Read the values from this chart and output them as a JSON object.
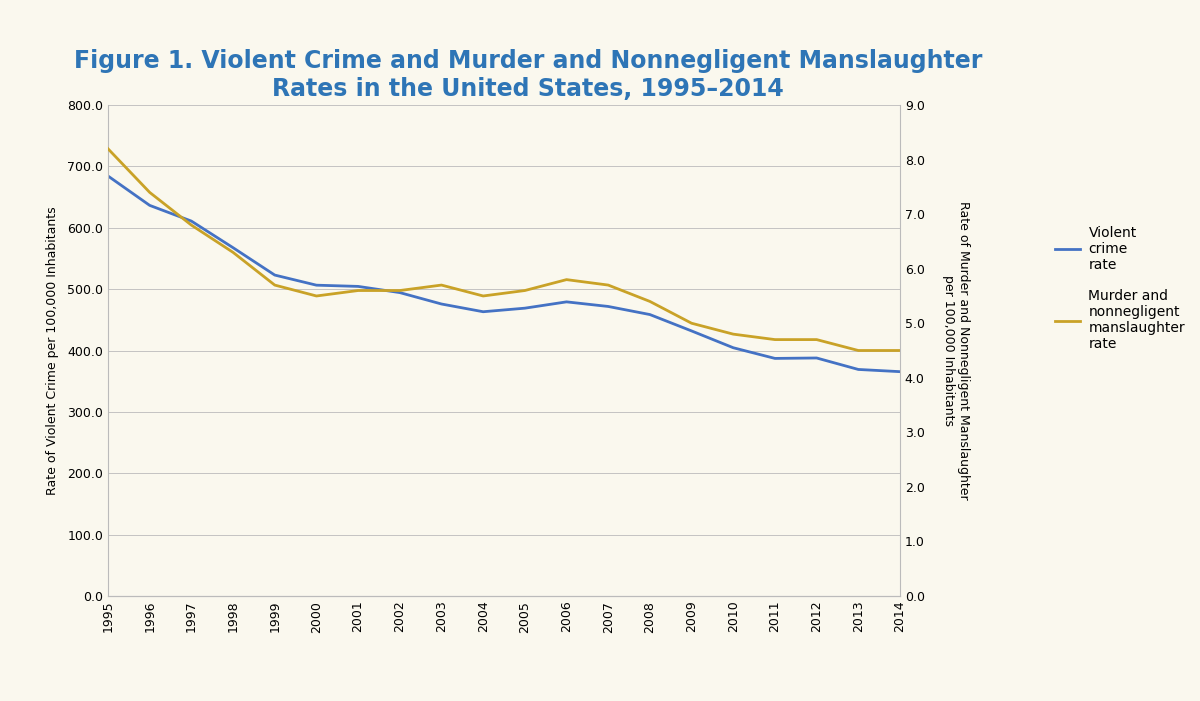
{
  "title_line1": "Figure 1. Violent Crime and Murder and Nonnegligent Manslaughter",
  "title_line2": "Rates in the United States, 1995–2014",
  "years": [
    1995,
    1996,
    1997,
    1998,
    1999,
    2000,
    2001,
    2002,
    2003,
    2004,
    2005,
    2006,
    2007,
    2008,
    2009,
    2010,
    2011,
    2012,
    2013,
    2014
  ],
  "violent_crime": [
    684.5,
    636.6,
    611.0,
    567.6,
    523.0,
    506.5,
    504.5,
    494.4,
    475.8,
    463.2,
    469.0,
    479.3,
    471.8,
    458.6,
    431.9,
    404.5,
    387.1,
    387.8,
    369.1,
    365.5
  ],
  "murder": [
    8.2,
    7.4,
    6.8,
    6.3,
    5.7,
    5.5,
    5.6,
    5.6,
    5.7,
    5.5,
    5.6,
    5.8,
    5.7,
    5.4,
    5.0,
    4.8,
    4.7,
    4.7,
    4.5,
    4.5
  ],
  "violent_crime_color": "#4472C4",
  "murder_color": "#C9A227",
  "background_color": "#FAF8EE",
  "grid_color": "#BBBBBB",
  "title_color": "#2E75B6",
  "ylabel_left": "Rate of Violent Crime per 100,000 Inhabitants",
  "ylabel_right": "Rate of Murder and Nonnegligent Manslaughter\nper 100,000 Inhabitants",
  "legend_violent": "Violent\ncrime\nrate",
  "legend_murder": "Murder and\nnonnegligent\nmanslaughter\nrate",
  "ylim_left": [
    0,
    800
  ],
  "ylim_right": [
    0,
    9.0
  ],
  "yticks_left": [
    0.0,
    100.0,
    200.0,
    300.0,
    400.0,
    500.0,
    600.0,
    700.0,
    800.0
  ],
  "yticks_right": [
    0.0,
    1.0,
    2.0,
    3.0,
    4.0,
    5.0,
    6.0,
    7.0,
    8.0,
    9.0
  ],
  "line_width": 2.0,
  "title_fontsize": 17,
  "axis_label_fontsize": 9,
  "tick_fontsize": 9,
  "legend_fontsize": 10
}
